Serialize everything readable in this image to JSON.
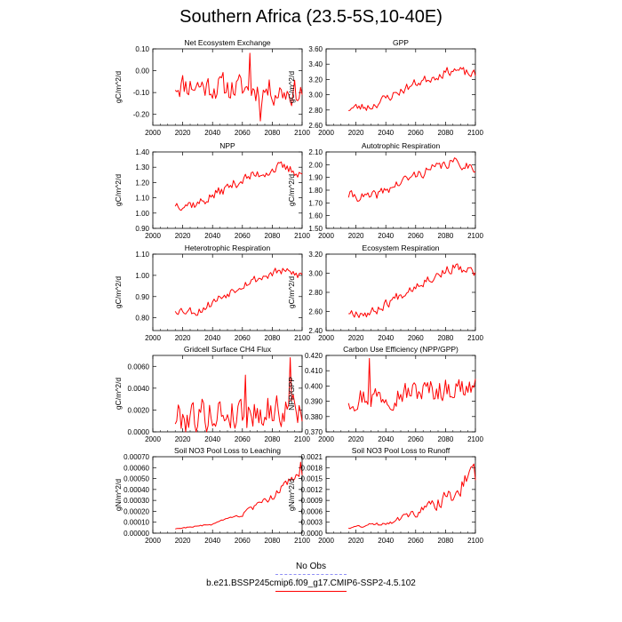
{
  "page": {
    "title": "Southern Africa (23.5-5S,10-40E)",
    "legend": [
      {
        "label": "No Obs",
        "color": "#8f8ff5",
        "style": "dashed"
      },
      {
        "label": "b.e21.BSSP245cmip6.f09_g17.CMIP6-SSP2-4.5.102",
        "color": "#ff0000",
        "style": "solid"
      }
    ]
  },
  "chart_data": [
    {
      "type": "line",
      "title": "Net Ecosystem Exchange",
      "ylabel": "gC/m^2/d",
      "xlabel": "",
      "xlim": [
        2000,
        2100
      ],
      "ylim": [
        -0.25,
        0.1
      ],
      "yticks": [
        "0.10",
        "0.00",
        "-0.10",
        "-0.20"
      ],
      "ytick_values": [
        0.1,
        0.0,
        -0.1,
        -0.2
      ],
      "xticks": [
        "2000",
        "2020",
        "2040",
        "2060",
        "2080",
        "2100"
      ],
      "series": [
        {
          "color": "#ff0000",
          "mode": "noise",
          "x_start": 2015,
          "x_end": 2100,
          "trend": [
            [
              2015,
              -0.06
            ],
            [
              2100,
              -0.1
            ]
          ],
          "amplitude": 0.07,
          "seed": 11,
          "values_note": "",
          "spikes": [
            [
              2065,
              0.08
            ],
            [
              2072,
              -0.23
            ]
          ]
        }
      ]
    },
    {
      "type": "line",
      "title": "GPP",
      "ylabel": "gC/m^2/d",
      "xlabel": "",
      "xlim": [
        2000,
        2100
      ],
      "ylim": [
        2.6,
        3.6
      ],
      "yticks": [
        "3.60",
        "3.40",
        "3.20",
        "3.00",
        "2.80",
        "2.60"
      ],
      "ytick_values": [
        3.6,
        3.4,
        3.2,
        3.0,
        2.8,
        2.6
      ],
      "xticks": [
        "2000",
        "2020",
        "2040",
        "2060",
        "2080",
        "2100"
      ],
      "series": [
        {
          "color": "#ff0000",
          "mode": "noise",
          "x_start": 2015,
          "x_end": 2100,
          "trend": [
            [
              2015,
              2.82
            ],
            [
              2030,
              2.85
            ],
            [
              2060,
              3.15
            ],
            [
              2085,
              3.33
            ],
            [
              2100,
              3.25
            ]
          ],
          "amplitude": 0.07,
          "seed": 23,
          "values_note": "",
          "spikes": []
        }
      ]
    },
    {
      "type": "line",
      "title": "NPP",
      "ylabel": "gC/m^2/d",
      "xlabel": "",
      "xlim": [
        2000,
        2100
      ],
      "ylim": [
        0.9,
        1.4
      ],
      "yticks": [
        "1.40",
        "1.30",
        "1.20",
        "1.10",
        "1.00",
        "0.90"
      ],
      "ytick_values": [
        1.4,
        1.3,
        1.2,
        1.1,
        1.0,
        0.9
      ],
      "xticks": [
        "2000",
        "2020",
        "2040",
        "2060",
        "2080",
        "2100"
      ],
      "series": [
        {
          "color": "#ff0000",
          "mode": "noise",
          "x_start": 2015,
          "x_end": 2100,
          "trend": [
            [
              2015,
              1.06
            ],
            [
              2030,
              1.06
            ],
            [
              2060,
              1.22
            ],
            [
              2085,
              1.3
            ],
            [
              2100,
              1.26
            ]
          ],
          "amplitude": 0.04,
          "seed": 37,
          "values_note": "",
          "spikes": []
        }
      ]
    },
    {
      "type": "line",
      "title": "Autotrophic Respiration",
      "ylabel": "gC/m^2/d",
      "xlabel": "",
      "xlim": [
        2000,
        2100
      ],
      "ylim": [
        1.5,
        2.1
      ],
      "yticks": [
        "2.10",
        "2.00",
        "1.90",
        "1.80",
        "1.70",
        "1.60",
        "1.50"
      ],
      "ytick_values": [
        2.1,
        2.0,
        1.9,
        1.8,
        1.7,
        1.6,
        1.5
      ],
      "xticks": [
        "2000",
        "2020",
        "2040",
        "2060",
        "2080",
        "2100"
      ],
      "series": [
        {
          "color": "#ff0000",
          "mode": "noise",
          "x_start": 2015,
          "x_end": 2100,
          "trend": [
            [
              2015,
              1.76
            ],
            [
              2030,
              1.74
            ],
            [
              2060,
              1.92
            ],
            [
              2085,
              2.02
            ],
            [
              2100,
              1.98
            ]
          ],
          "amplitude": 0.045,
          "seed": 41,
          "values_note": "",
          "spikes": []
        }
      ]
    },
    {
      "type": "line",
      "title": "Heterotrophic Respiration",
      "ylabel": "gC/m^2/d",
      "xlabel": "",
      "xlim": [
        2000,
        2100
      ],
      "ylim": [
        0.74,
        1.1
      ],
      "yticks": [
        "1.10",
        "1.00",
        "0.90",
        "0.80"
      ],
      "ytick_values": [
        1.1,
        1.0,
        0.9,
        0.8
      ],
      "xticks": [
        "2000",
        "2020",
        "2040",
        "2060",
        "2080",
        "2100"
      ],
      "series": [
        {
          "color": "#ff0000",
          "mode": "noise",
          "x_start": 2015,
          "x_end": 2100,
          "trend": [
            [
              2015,
              0.84
            ],
            [
              2030,
              0.83
            ],
            [
              2060,
              0.96
            ],
            [
              2085,
              1.02
            ],
            [
              2100,
              1.0
            ]
          ],
          "amplitude": 0.025,
          "seed": 53,
          "values_note": "",
          "spikes": []
        }
      ]
    },
    {
      "type": "line",
      "title": "Ecosystem Respiration",
      "ylabel": "gC/m^2/d",
      "xlabel": "",
      "xlim": [
        2000,
        2100
      ],
      "ylim": [
        2.4,
        3.2
      ],
      "yticks": [
        "3.20",
        "3.00",
        "2.80",
        "2.60",
        "2.40"
      ],
      "ytick_values": [
        3.2,
        3.0,
        2.8,
        2.6,
        2.4
      ],
      "xticks": [
        "2000",
        "2020",
        "2040",
        "2060",
        "2080",
        "2100"
      ],
      "series": [
        {
          "color": "#ff0000",
          "mode": "noise",
          "x_start": 2015,
          "x_end": 2100,
          "trend": [
            [
              2015,
              2.6
            ],
            [
              2030,
              2.58
            ],
            [
              2060,
              2.88
            ],
            [
              2085,
              3.06
            ],
            [
              2100,
              3.0
            ]
          ],
          "amplitude": 0.06,
          "seed": 67,
          "values_note": "",
          "spikes": []
        }
      ]
    },
    {
      "type": "line",
      "title": "Gridcell Surface CH4 Flux",
      "ylabel": "gC/m^2/d",
      "xlabel": "",
      "xlim": [
        2000,
        2100
      ],
      "ylim": [
        0,
        0.007
      ],
      "yticks": [
        "0.0060",
        "0.0040",
        "0.0020",
        "0.0000"
      ],
      "ytick_values": [
        0.006,
        0.004,
        0.002,
        0.0
      ],
      "xticks": [
        "2000",
        "2020",
        "2040",
        "2060",
        "2080",
        "2100"
      ],
      "series": [
        {
          "color": "#ff0000",
          "mode": "noise",
          "x_start": 2015,
          "x_end": 2100,
          "trend": [
            [
              2015,
              0.0014
            ],
            [
              2060,
              0.0018
            ],
            [
              2100,
              0.0022
            ]
          ],
          "amplitude": 0.0018,
          "seed": 79,
          "floor": 0.0,
          "values_note": "",
          "spikes": [
            [
              2092,
              0.0068
            ],
            [
              2062,
              0.0052
            ]
          ]
        }
      ]
    },
    {
      "type": "line",
      "title": "Carbon Use Efficiency (NPP/GPP)",
      "ylabel": "NPP/GPP",
      "xlabel": "",
      "xlim": [
        2000,
        2100
      ],
      "ylim": [
        0.37,
        0.42
      ],
      "yticks": [
        "0.420",
        "0.410",
        "0.400",
        "0.390",
        "0.380",
        "0.370"
      ],
      "ytick_values": [
        0.42,
        0.41,
        0.4,
        0.39,
        0.38,
        0.37
      ],
      "xticks": [
        "2000",
        "2020",
        "2040",
        "2060",
        "2080",
        "2100"
      ],
      "series": [
        {
          "color": "#ff0000",
          "mode": "noise",
          "x_start": 2015,
          "x_end": 2100,
          "trend": [
            [
              2015,
              0.392
            ],
            [
              2100,
              0.4
            ]
          ],
          "amplitude": 0.009,
          "seed": 97,
          "values_note": "",
          "spikes": [
            [
              2029,
              0.418
            ]
          ]
        }
      ]
    },
    {
      "type": "line",
      "title": "Soil NO3 Pool Loss to Leaching",
      "ylabel": "gN/m^2/d",
      "xlabel": "",
      "xlim": [
        2000,
        2100
      ],
      "ylim": [
        0,
        0.0007
      ],
      "yticks": [
        "0.00070",
        "0.00060",
        "0.00050",
        "0.00040",
        "0.00030",
        "0.00020",
        "0.00010",
        "0.00000"
      ],
      "ytick_values": [
        0.0007,
        0.0006,
        0.0005,
        0.0004,
        0.0003,
        0.0002,
        0.0001,
        0.0
      ],
      "xticks": [
        "2000",
        "2020",
        "2040",
        "2060",
        "2080",
        "2100"
      ],
      "series": [
        {
          "color": "#ff0000",
          "mode": "noise",
          "x_start": 2015,
          "x_end": 2100,
          "trend": [
            [
              2015,
              4e-05
            ],
            [
              2040,
              8e-05
            ],
            [
              2060,
              0.00017
            ],
            [
              2080,
              0.00033
            ],
            [
              2100,
              0.00058
            ]
          ],
          "amplitude": 0.04,
          "relative": true,
          "seed": 103,
          "values_note": "",
          "spikes": [
            [
              2099,
              0.00065
            ]
          ]
        }
      ]
    },
    {
      "type": "line",
      "title": "Soil NO3 Pool Loss to Runoff",
      "ylabel": "gN/m^2/d",
      "xlabel": "",
      "xlim": [
        2000,
        2100
      ],
      "ylim": [
        0,
        0.0021
      ],
      "yticks": [
        "0.0021",
        "0.0018",
        "0.0015",
        "0.0012",
        "0.0009",
        "0.0006",
        "0.0003",
        "0.0000"
      ],
      "ytick_values": [
        0.0021,
        0.0018,
        0.0015,
        0.0012,
        0.0009,
        0.0006,
        0.0003,
        0.0
      ],
      "xticks": [
        "2000",
        "2020",
        "2040",
        "2060",
        "2080",
        "2100"
      ],
      "series": [
        {
          "color": "#ff0000",
          "mode": "noise",
          "x_start": 2015,
          "x_end": 2100,
          "trend": [
            [
              2015,
              0.00015
            ],
            [
              2040,
              0.00028
            ],
            [
              2060,
              0.00055
            ],
            [
              2080,
              0.00095
            ],
            [
              2100,
              0.0016
            ]
          ],
          "amplitude": 0.08,
          "relative": true,
          "seed": 131,
          "values_note": "",
          "spikes": [
            [
              2099,
              0.0019
            ]
          ]
        }
      ]
    }
  ]
}
